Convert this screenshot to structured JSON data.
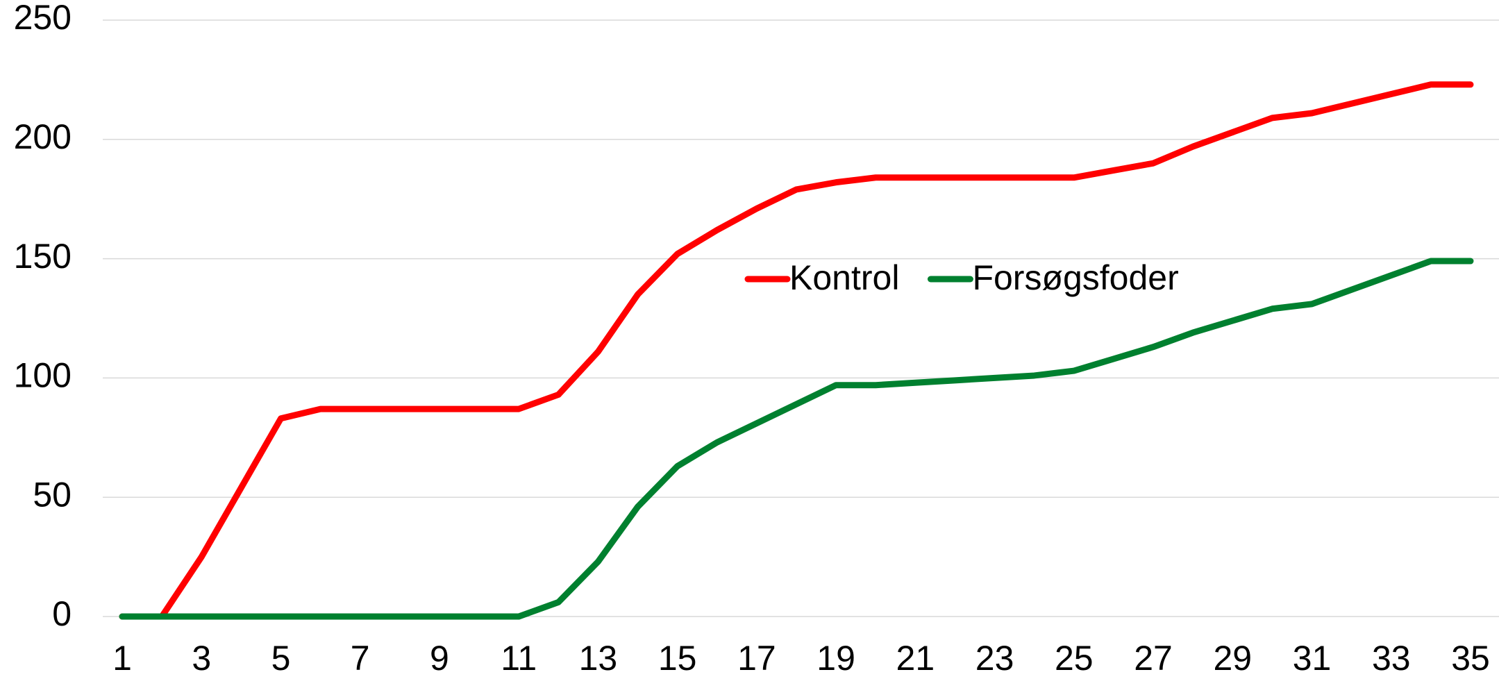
{
  "chart_data": {
    "type": "line",
    "x": [
      1,
      2,
      3,
      4,
      5,
      6,
      7,
      8,
      9,
      10,
      11,
      12,
      13,
      14,
      15,
      16,
      17,
      18,
      19,
      20,
      21,
      22,
      23,
      24,
      25,
      26,
      27,
      28,
      29,
      30,
      31,
      32,
      33,
      34,
      35
    ],
    "xlim": [
      1,
      35
    ],
    "xticks": [
      1,
      3,
      5,
      7,
      9,
      11,
      13,
      15,
      17,
      19,
      21,
      23,
      25,
      27,
      29,
      31,
      33,
      35
    ],
    "ylim": [
      0,
      250
    ],
    "yticks": [
      0,
      50,
      100,
      150,
      200,
      250
    ],
    "grid": true,
    "legend": "center",
    "series": [
      {
        "name": "Kontrol",
        "color": "#ff0000",
        "values": [
          0,
          0,
          25,
          54,
          83,
          87,
          87,
          87,
          87,
          87,
          87,
          93,
          111,
          135,
          152,
          162,
          171,
          179,
          182,
          184,
          184,
          184,
          184,
          184,
          184,
          187,
          190,
          197,
          203,
          209,
          211,
          215,
          219,
          223,
          223
        ]
      },
      {
        "name": "Forsøgsfoder",
        "color": "#00802f",
        "values": [
          0,
          0,
          0,
          0,
          0,
          0,
          0,
          0,
          0,
          0,
          0,
          6,
          23,
          46,
          63,
          73,
          81,
          89,
          97,
          97,
          98,
          99,
          100,
          101,
          103,
          108,
          113,
          119,
          124,
          129,
          131,
          137,
          143,
          149,
          149
        ]
      }
    ]
  }
}
